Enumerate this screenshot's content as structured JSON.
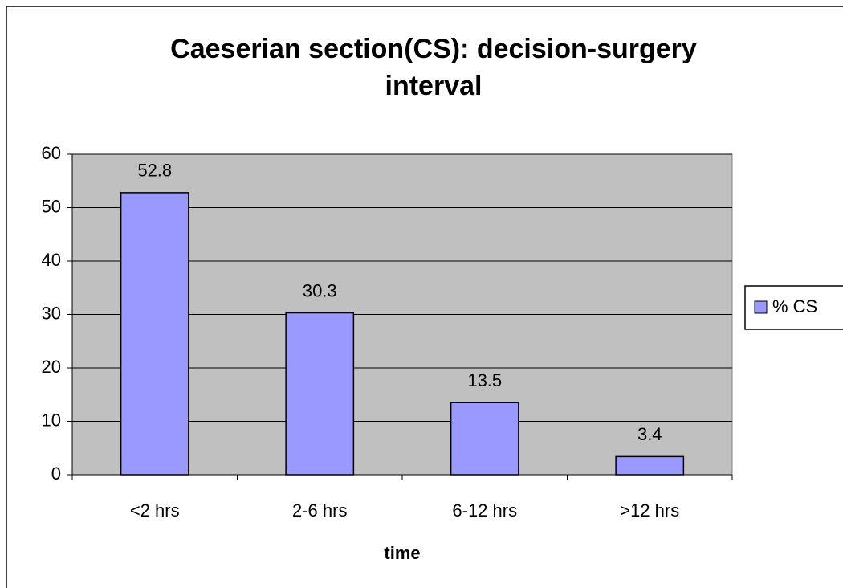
{
  "chart_data": {
    "type": "bar",
    "title": "Caeserian section(CS): decision-surgery interval",
    "x_label": "time",
    "categories": [
      "<2 hrs",
      "2-6 hrs",
      "6-12 hrs",
      ">12 hrs"
    ],
    "series": [
      {
        "name": "% CS",
        "color": "#9999ff",
        "values": [
          52.8,
          30.3,
          13.5,
          3.4
        ]
      }
    ],
    "ylim": [
      0,
      60
    ],
    "yticks": [
      0,
      10,
      20,
      30,
      40,
      50,
      60
    ],
    "grid": true,
    "legend": "right"
  }
}
